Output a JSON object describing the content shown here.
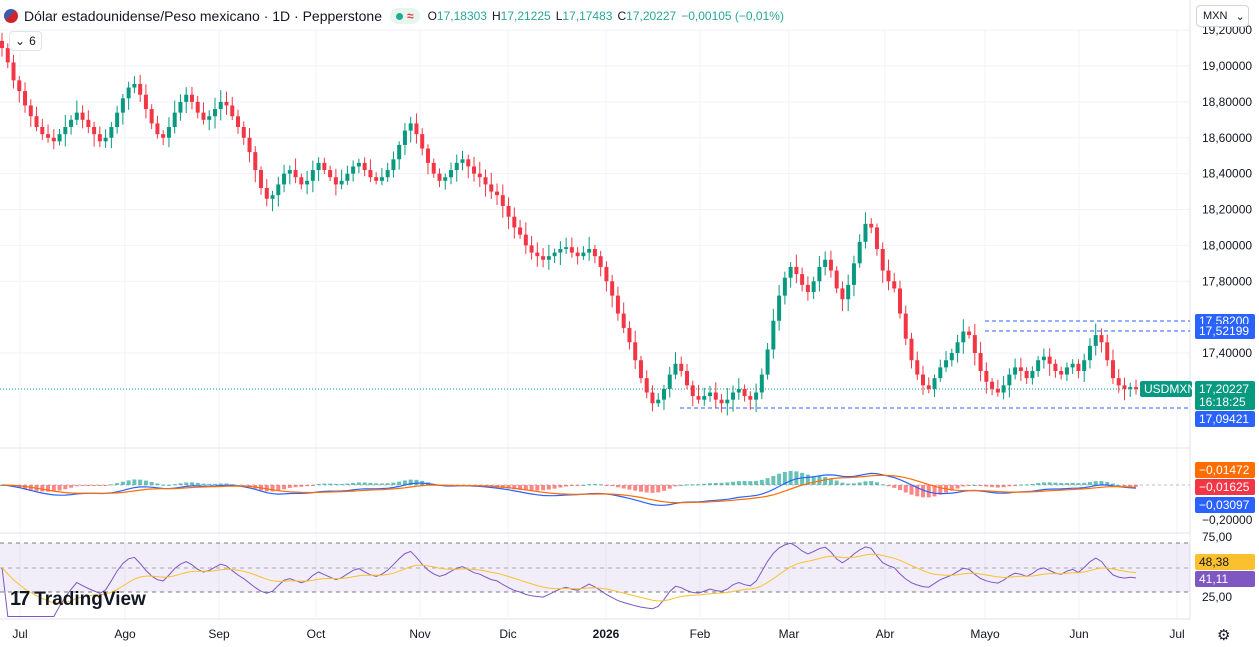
{
  "header": {
    "title": "Dólar estadounidense/Peso mexicano · 1D · Pepperstone",
    "wave_glyph": "≈",
    "ohlc": [
      {
        "k": "O",
        "v": "17,18303"
      },
      {
        "k": "H",
        "v": "17,21225"
      },
      {
        "k": "L",
        "v": "17,17483"
      },
      {
        "k": "C",
        "v": "17,20227"
      },
      {
        "k": "",
        "v": "−0,00105 (−0,01%)"
      }
    ]
  },
  "indicator_toggle": {
    "chevron": "⌄",
    "count": "6"
  },
  "currency_select": {
    "value": "MXN",
    "chevron": "⌄"
  },
  "brand": {
    "mark": "17",
    "name": "TradingView"
  },
  "settings_glyph": "⚙",
  "colors": {
    "up": "#089981",
    "down": "#f23645",
    "macd": "#2962ff",
    "signal": "#ff6d00",
    "rsi": "#7e57c2",
    "rsi_ma": "#fbc02d",
    "price_line": "#089981",
    "dashed": "#2962ff"
  },
  "chart_data": {
    "type": "candlestick",
    "symbol": "USDMXN",
    "price_axis": [
      "19,20000",
      "19,00000",
      "18,80000",
      "18,60000",
      "18,40000",
      "18,20000",
      "18,00000",
      "17,80000",
      "17,40000"
    ],
    "time_axis": [
      "Jul",
      "Ago",
      "Sep",
      "Oct",
      "Nov",
      "Dic",
      "2026",
      "Feb",
      "Mar",
      "Abr",
      "Mayo",
      "Jun",
      "Jul"
    ],
    "last_price": {
      "label": "USDMXN",
      "value": "17,20227",
      "countdown": "16:18:25"
    },
    "levels": [
      {
        "value": "17,58200"
      },
      {
        "value": "17,52199"
      },
      {
        "value": "17,09421"
      }
    ],
    "macd_labels": [
      "−0,01472",
      "−0,01625",
      "−0,03097"
    ],
    "macd_axis": [
      "−0,20000"
    ],
    "rsi_labels": [
      "48,38",
      "41,11"
    ],
    "rsi_axis": [
      "75,00",
      "25,00"
    ],
    "closes": [
      19.1,
      19.02,
      18.92,
      18.86,
      18.78,
      18.72,
      18.66,
      18.62,
      18.6,
      18.58,
      18.62,
      18.66,
      18.7,
      18.74,
      18.7,
      18.66,
      18.62,
      18.58,
      18.6,
      18.66,
      18.74,
      18.82,
      18.88,
      18.9,
      18.84,
      18.76,
      18.68,
      18.62,
      18.6,
      18.66,
      18.74,
      18.8,
      18.84,
      18.8,
      18.74,
      18.7,
      18.72,
      18.76,
      18.8,
      18.78,
      18.72,
      18.66,
      18.6,
      18.52,
      18.42,
      18.32,
      18.26,
      18.28,
      18.34,
      18.4,
      18.42,
      18.38,
      18.34,
      18.36,
      18.42,
      18.46,
      18.42,
      18.38,
      18.34,
      18.36,
      18.4,
      18.44,
      18.46,
      18.42,
      18.38,
      18.36,
      18.38,
      18.42,
      18.48,
      18.56,
      18.64,
      18.68,
      18.62,
      18.54,
      18.46,
      18.4,
      18.36,
      18.38,
      18.42,
      18.46,
      18.48,
      18.44,
      18.4,
      18.38,
      18.34,
      18.3,
      18.28,
      18.22,
      18.16,
      18.1,
      18.06,
      18.0,
      17.96,
      17.94,
      17.92,
      17.94,
      17.96,
      17.98,
      17.99,
      17.96,
      17.94,
      17.96,
      17.98,
      17.94,
      17.88,
      17.8,
      17.72,
      17.62,
      17.54,
      17.46,
      17.36,
      17.26,
      17.18,
      17.12,
      17.14,
      17.2,
      17.28,
      17.34,
      17.3,
      17.22,
      17.16,
      17.14,
      17.16,
      17.18,
      17.14,
      17.12,
      17.14,
      17.18,
      17.2,
      17.16,
      17.14,
      17.18,
      17.28,
      17.42,
      17.58,
      17.72,
      17.82,
      17.88,
      17.84,
      17.78,
      17.74,
      17.8,
      17.88,
      17.92,
      17.86,
      17.76,
      17.7,
      17.78,
      17.9,
      18.02,
      18.12,
      18.1,
      17.98,
      17.86,
      17.8,
      17.76,
      17.62,
      17.48,
      17.36,
      17.28,
      17.22,
      17.2,
      17.26,
      17.32,
      17.36,
      17.4,
      17.46,
      17.52,
      17.5,
      17.4,
      17.3,
      17.24,
      17.2,
      17.18,
      17.22,
      17.28,
      17.32,
      17.3,
      17.26,
      17.3,
      17.36,
      17.38,
      17.34,
      17.3,
      17.28,
      17.32,
      17.34,
      17.3,
      17.36,
      17.44,
      17.5,
      17.46,
      17.36,
      17.26,
      17.22,
      17.2,
      17.21,
      17.2
    ]
  }
}
